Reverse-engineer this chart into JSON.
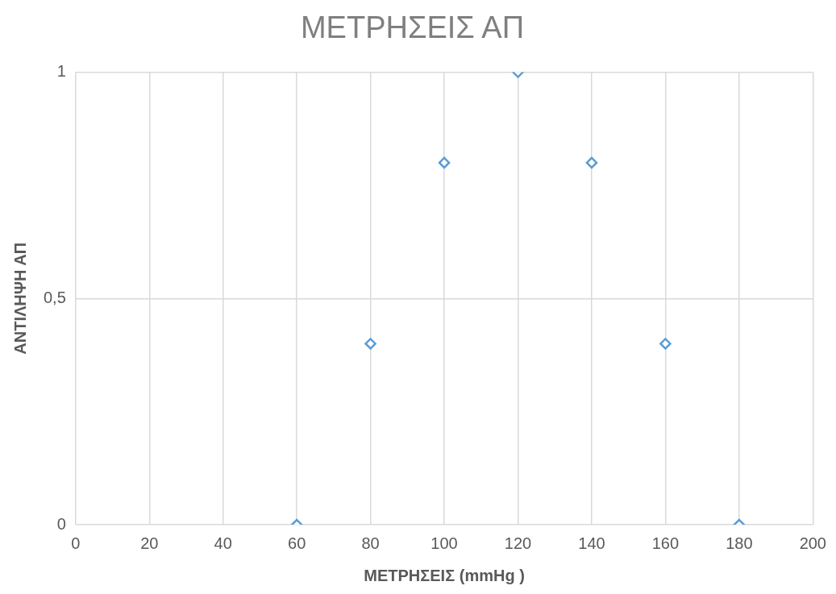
{
  "chart_data": {
    "type": "scatter",
    "title": "ΜΕΤΡΗΣΕΙΣ ΑΠ",
    "xlabel": "ΜΕΤΡΗΣΕΙΣ (mmHg )",
    "ylabel": "ΑΝΤΙΛΗΨΗ ΑΠ",
    "x": [
      60,
      80,
      100,
      120,
      140,
      160,
      180
    ],
    "series": [
      {
        "color": "#5b9bd5",
        "values": [
          0,
          0.4,
          0.8,
          1,
          0.8,
          0.4,
          0
        ]
      }
    ],
    "xlim": [
      0,
      200
    ],
    "xticks": [
      0,
      20,
      40,
      60,
      80,
      100,
      120,
      140,
      160,
      180,
      200
    ],
    "ylim": [
      0,
      1
    ],
    "yticks": [
      0,
      {
        "value": 0.5,
        "label": "0,5"
      },
      1
    ],
    "grid": true,
    "marker": "diamond",
    "legend": false
  }
}
